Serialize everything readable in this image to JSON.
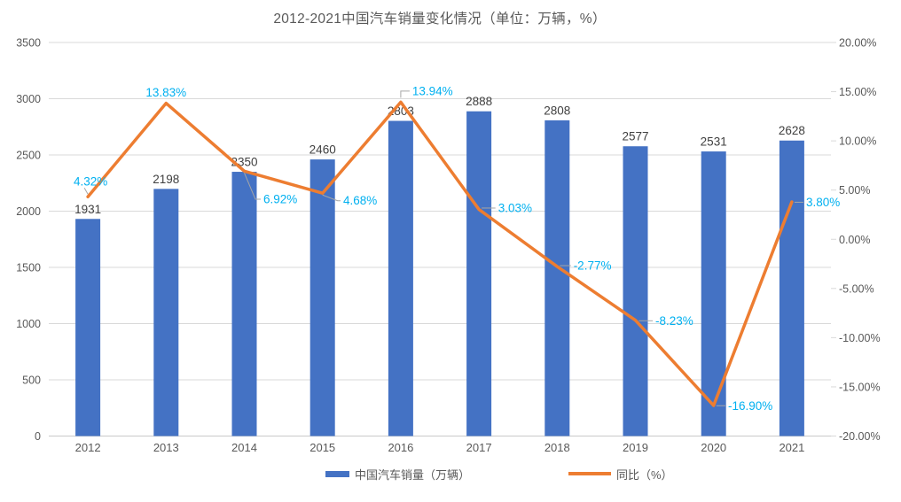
{
  "title": "2012-2021中国汽车销量变化情况（单位：万辆，%）",
  "chart_data": {
    "type": "combo-bar-line",
    "categories": [
      "2012",
      "2013",
      "2014",
      "2015",
      "2016",
      "2017",
      "2018",
      "2019",
      "2020",
      "2021"
    ],
    "series": [
      {
        "name": "中国汽车销量（万辆）",
        "type": "bar",
        "axis": "left",
        "color": "#4472C4",
        "label_color": "#404040",
        "values": [
          1931,
          2198,
          2350,
          2460,
          2803,
          2888,
          2808,
          2577,
          2531,
          2628
        ],
        "labels": [
          "1931",
          "2198",
          "2350",
          "2460",
          "2803",
          "2888",
          "2808",
          "2577",
          "2531",
          "2628"
        ]
      },
      {
        "name": "同比（%）",
        "type": "line",
        "axis": "right",
        "color": "#ED7D31",
        "label_color": "#00B0F0",
        "values": [
          4.32,
          13.83,
          6.92,
          4.68,
          13.94,
          3.03,
          -2.77,
          -8.23,
          -16.9,
          3.8
        ],
        "labels": [
          "4.32%",
          "13.83%",
          "6.92%",
          "4.68%",
          "13.94%",
          "3.03%",
          "-2.77%",
          "-8.23%",
          "-16.90%",
          "3.80%"
        ]
      }
    ],
    "left_axis": {
      "min": 0,
      "max": 3500,
      "step": 500,
      "tick_labels": [
        "3500",
        "3000",
        "2500",
        "2000",
        "1500",
        "1000",
        "500",
        "0"
      ]
    },
    "right_axis": {
      "min": -20,
      "max": 20,
      "step": 5,
      "tick_labels": [
        "20.00%",
        "15.00%",
        "10.00%",
        "5.00%",
        "0.00%",
        "-5.00%",
        "-10.00%",
        "-15.00%",
        "-20.00%"
      ]
    },
    "legend": [
      "中国汽车销量（万辆）",
      "同比（%）"
    ],
    "legend_position": "bottom",
    "grid": "horizontal",
    "colors": {
      "axis_text": "#595959",
      "gridline": "#D9D9D9",
      "leader_line": "#A6A6A6"
    }
  }
}
